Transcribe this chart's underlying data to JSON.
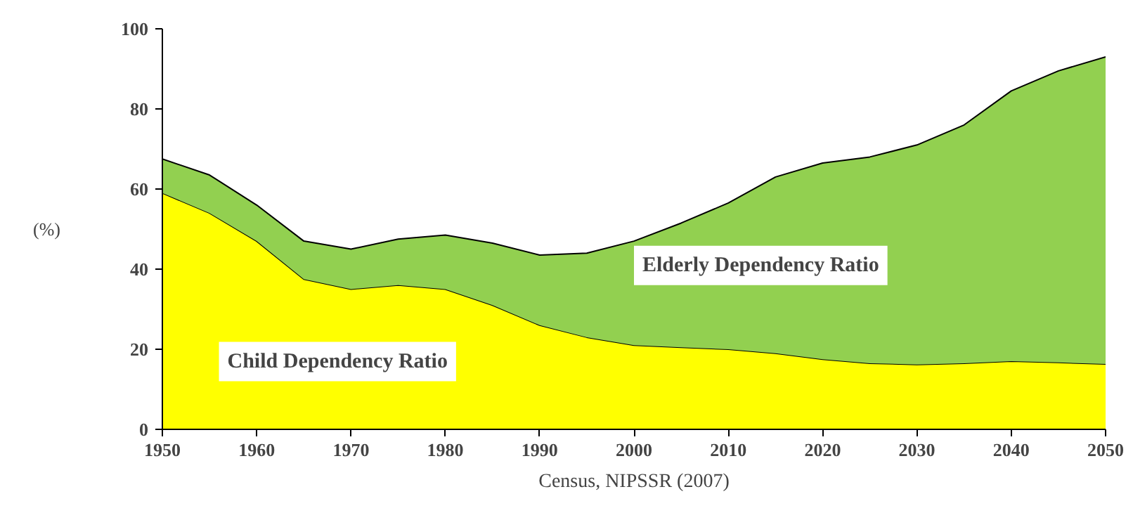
{
  "chart_data": {
    "type": "area",
    "stacked": true,
    "x": [
      1950,
      1955,
      1960,
      1965,
      1970,
      1975,
      1980,
      1985,
      1990,
      1995,
      2000,
      2005,
      2010,
      2015,
      2020,
      2025,
      2030,
      2035,
      2040,
      2045,
      2050
    ],
    "series": [
      {
        "name": "Child Dependency Ratio",
        "color": "#ffff00",
        "values": [
          59,
          54,
          47,
          37.5,
          35,
          36,
          35,
          31,
          26,
          23,
          21,
          20.5,
          20,
          19,
          17.5,
          16.5,
          16.2,
          16.5,
          17,
          16.7,
          16.3
        ]
      },
      {
        "name": "Elderly Dependency Ratio",
        "color": "#92d050",
        "values": [
          8.5,
          9.5,
          9,
          9.5,
          10,
          11.5,
          13.5,
          15.5,
          17.5,
          21,
          26,
          31,
          36.5,
          44,
          49,
          51.5,
          54.8,
          59.5,
          67.5,
          72.8,
          76.7
        ]
      }
    ],
    "xlim": [
      1950,
      2050
    ],
    "xticks": [
      1950,
      1960,
      1970,
      1980,
      1990,
      2000,
      2010,
      2020,
      2030,
      2040,
      2050
    ],
    "ylim": [
      0,
      100
    ],
    "yticks": [
      0,
      20,
      40,
      60,
      80,
      100
    ],
    "ylabel": "(%)",
    "grid": false,
    "xlabel": "Census, NIPSSR (2007)"
  }
}
